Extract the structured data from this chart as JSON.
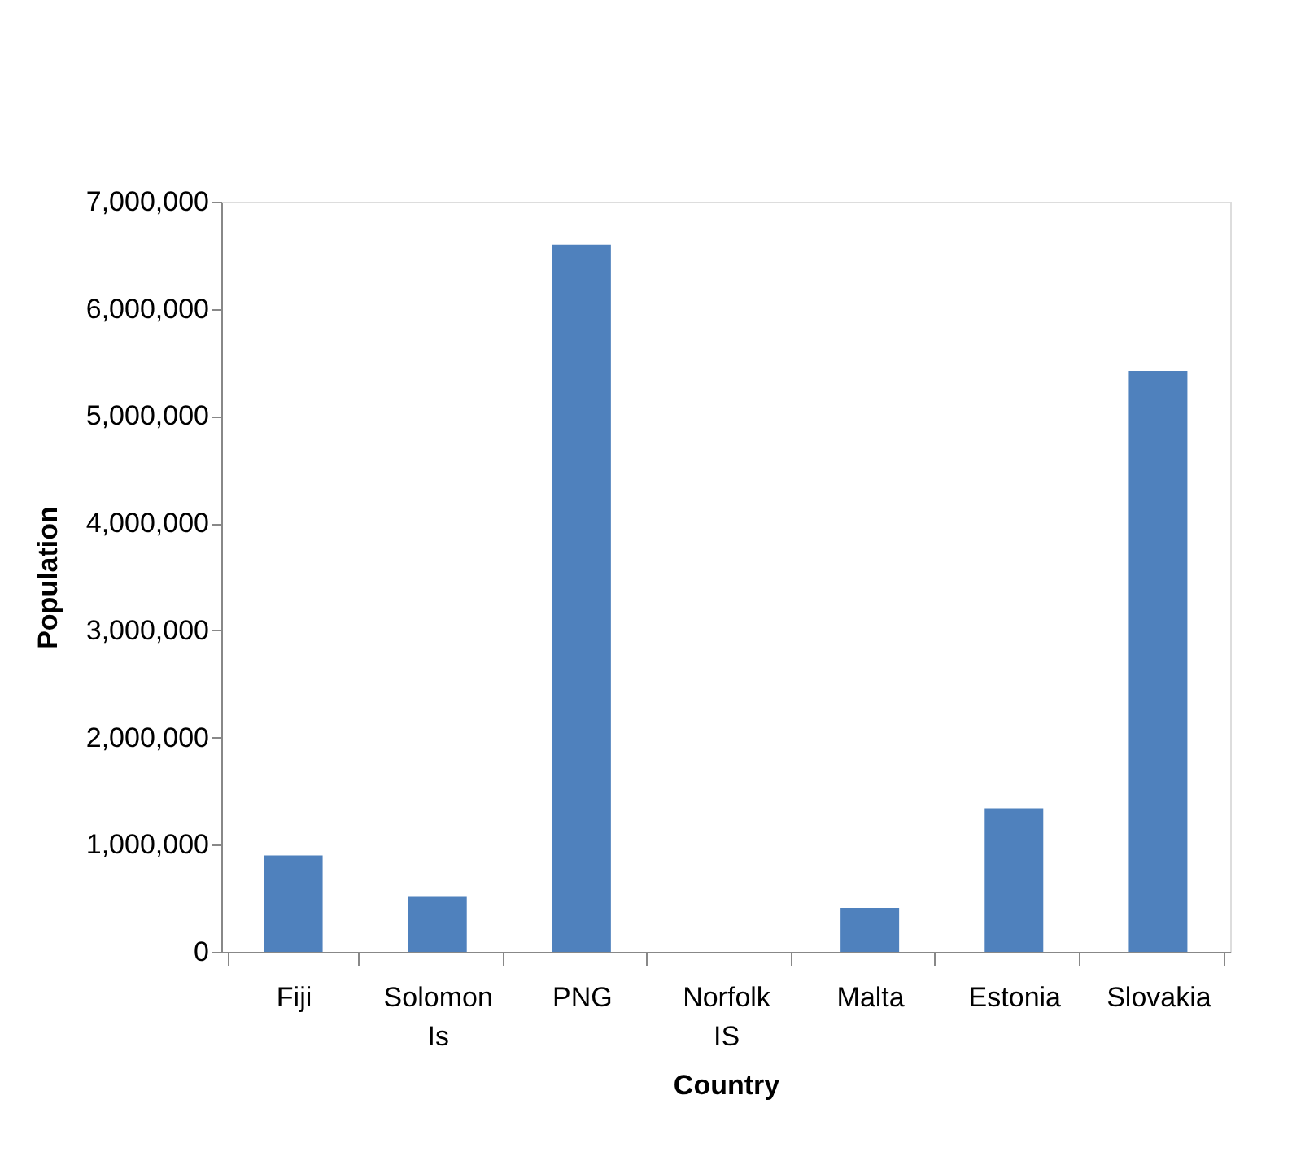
{
  "chart_data": {
    "type": "bar",
    "xlabel": "Country",
    "ylabel": "Population",
    "categories": [
      "Fiji",
      "Solomon Is",
      "PNG",
      "Norfolk IS",
      "Malta",
      "Estonia",
      "Slovakia"
    ],
    "values": [
      900000,
      520000,
      6600000,
      0,
      410000,
      1340000,
      5420000
    ],
    "color": "#4f81bd",
    "ylim": [
      0,
      7000000
    ],
    "yticks": [
      0,
      {
        "value": 1000000,
        "label": "1,000,000"
      },
      {
        "value": 2000000,
        "label": "2,000,000"
      },
      {
        "value": 3000000,
        "label": "3,000,000"
      },
      {
        "value": 4000000,
        "label": "4,000,000"
      },
      {
        "value": 5000000,
        "label": "5,000,000"
      },
      {
        "value": 6000000,
        "label": "6,000,000"
      },
      {
        "value": 7000000,
        "label": "7,000,000"
      }
    ],
    "grid": false
  }
}
